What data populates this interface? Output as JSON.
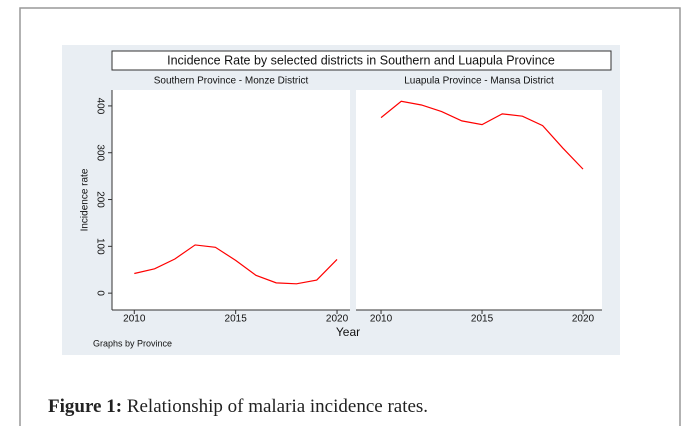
{
  "figure": {
    "title": "Incidence Rate by selected districts in Southern and Luapula Province",
    "x_label": "Year",
    "y_label": "Incidence rate",
    "note": "Graphs by Province"
  },
  "chart_data": [
    {
      "type": "line",
      "title": "Southern Province - Monze District",
      "color": "#ff0000",
      "x": [
        2010,
        2011,
        2012,
        2013,
        2014,
        2015,
        2016,
        2017,
        2018,
        2019,
        2020
      ],
      "values": [
        42,
        52,
        73,
        103,
        98,
        70,
        38,
        22,
        20,
        28,
        72
      ],
      "xlim": [
        2008.9,
        2020.64
      ],
      "xticks": [
        2010,
        2015,
        2020
      ],
      "ylim": [
        -36,
        434
      ],
      "yticks": [
        0,
        100,
        200,
        300,
        400
      ]
    },
    {
      "type": "line",
      "title": "Luapula Province - Mansa District",
      "color": "#ff0000",
      "x": [
        2010,
        2011,
        2012,
        2013,
        2014,
        2015,
        2016,
        2017,
        2018,
        2019,
        2020
      ],
      "values": [
        375,
        410,
        402,
        388,
        368,
        360,
        383,
        378,
        358,
        310,
        265
      ],
      "xlim": [
        2008.76,
        2020.94
      ],
      "xticks": [
        2010,
        2015,
        2020
      ],
      "ylim": [
        -36,
        434
      ]
    }
  ],
  "caption": {
    "label": "Figure 1:",
    "text": "Relationship of malaria incidence rates."
  }
}
